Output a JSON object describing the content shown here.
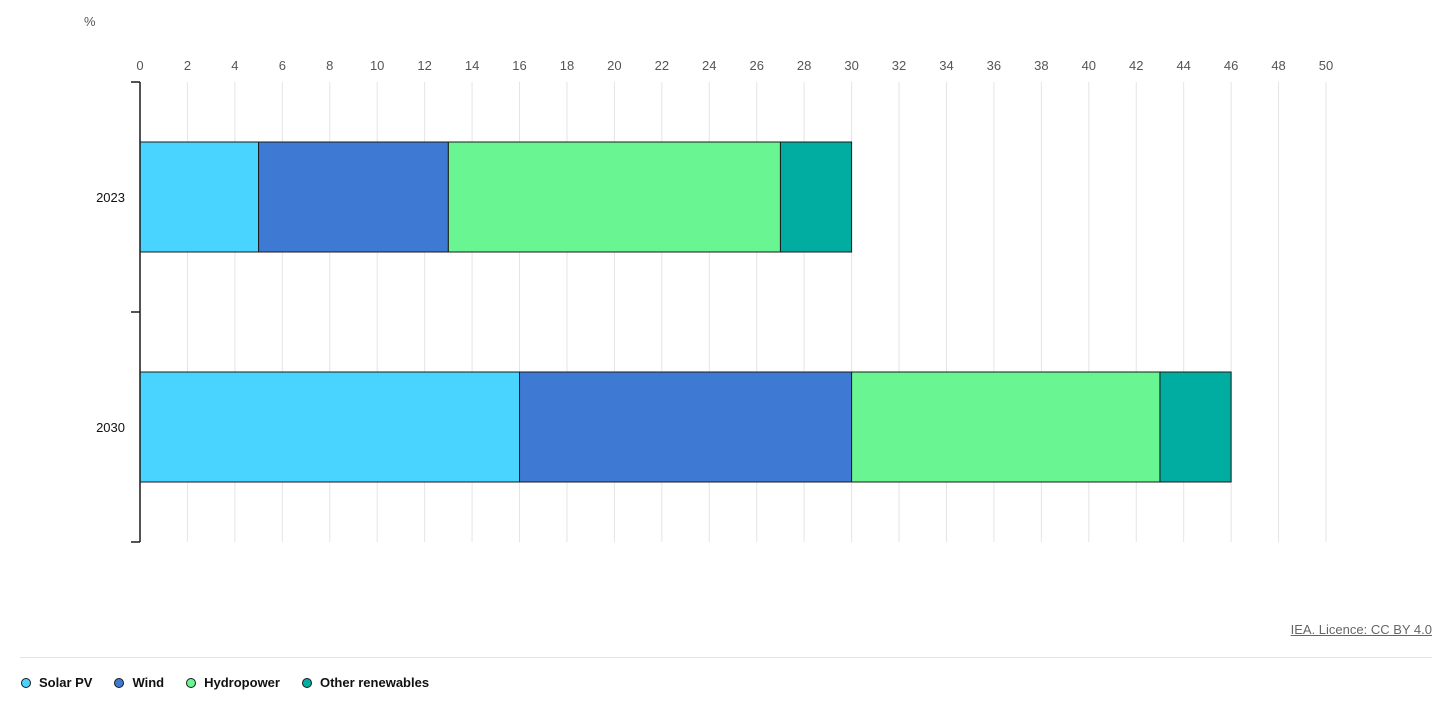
{
  "chart_data": {
    "type": "bar",
    "orientation": "horizontal",
    "stacked": true,
    "unit_label": "%",
    "categories": [
      "2023",
      "2030"
    ],
    "series": [
      {
        "name": "Solar PV",
        "color": "#48d4ff",
        "values": [
          5,
          16
        ]
      },
      {
        "name": "Wind",
        "color": "#3e7ad3",
        "values": [
          8,
          14
        ]
      },
      {
        "name": "Hydropower",
        "color": "#69f591",
        "values": [
          14,
          13
        ]
      },
      {
        "name": "Other renewables",
        "color": "#00ada0",
        "values": [
          3,
          3
        ]
      }
    ],
    "xlim": [
      0,
      50
    ],
    "xticks": [
      0,
      2,
      4,
      6,
      8,
      10,
      12,
      14,
      16,
      18,
      20,
      22,
      24,
      26,
      28,
      30,
      32,
      34,
      36,
      38,
      40,
      42,
      44,
      46,
      48,
      50
    ],
    "x_axis_position": "top",
    "grid": true,
    "legend_position": "bottom-left"
  },
  "credit": "IEA. Licence: CC BY 4.0"
}
